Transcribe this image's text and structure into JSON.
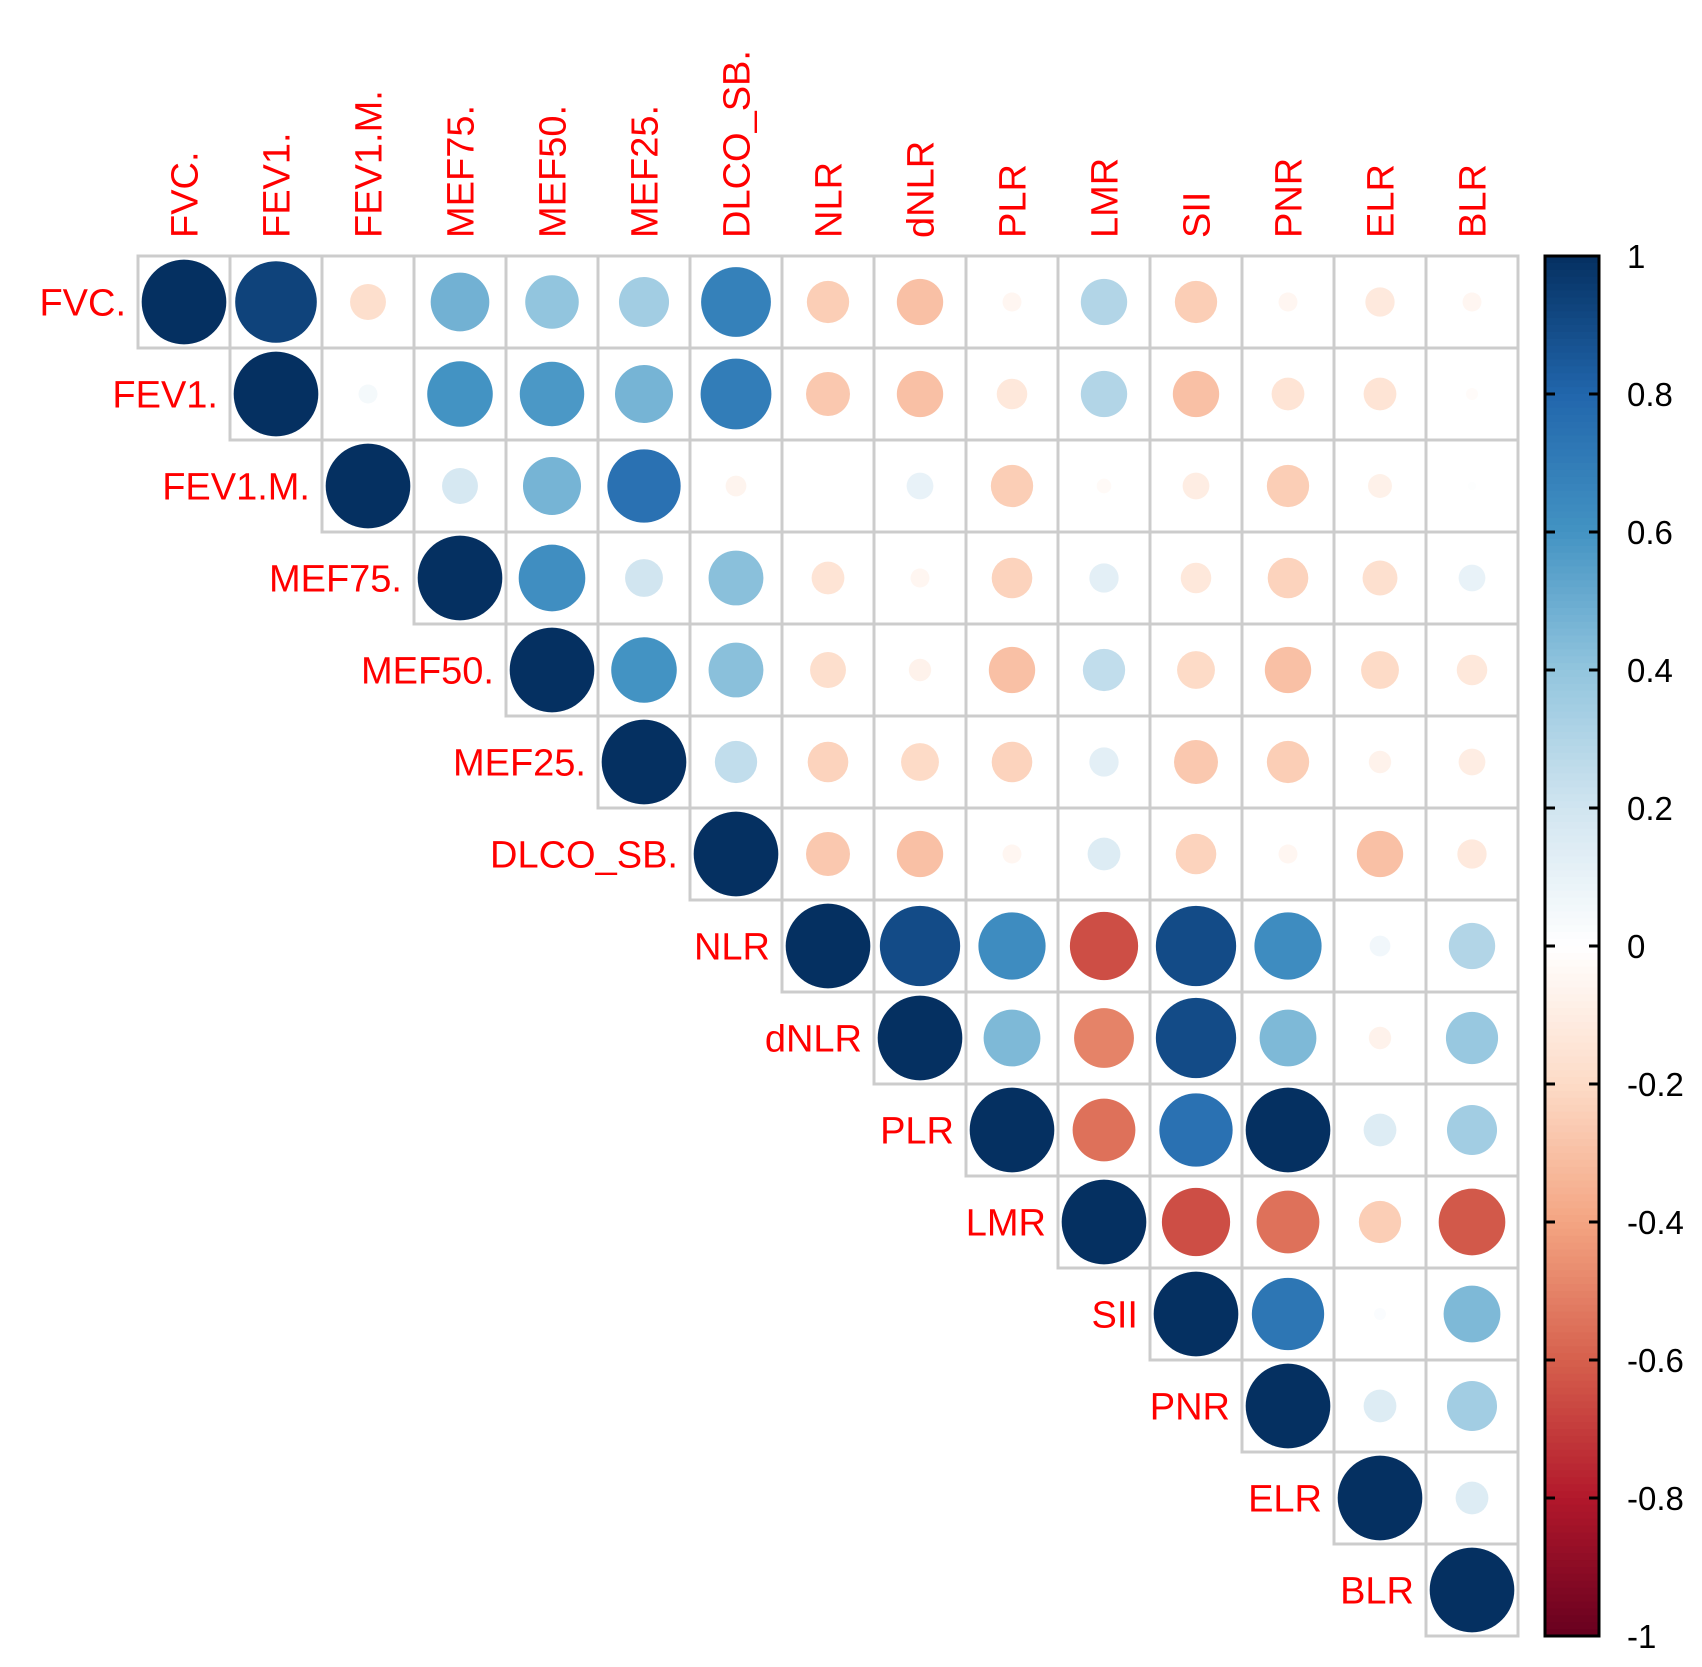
{
  "chart_data": {
    "type": "heatmap",
    "style": "corrplot-circle-upper",
    "variables": [
      "FVC.",
      "FEV1.",
      "FEV1.M.",
      "MEF75.",
      "MEF50.",
      "MEF25.",
      "DLCO_SB.",
      "NLR",
      "dNLR",
      "PLR",
      "LMR",
      "SII",
      "PNR",
      "ELR",
      "BLR"
    ],
    "matrix": [
      [
        1.0,
        0.93,
        -0.18,
        0.48,
        0.4,
        0.35,
        0.68,
        -0.25,
        -0.3,
        -0.05,
        0.3,
        -0.25,
        -0.05,
        -0.12,
        -0.05
      ],
      [
        null,
        1.0,
        0.05,
        0.6,
        0.58,
        0.47,
        0.7,
        -0.27,
        -0.3,
        -0.13,
        0.3,
        -0.3,
        -0.15,
        -0.15,
        -0.02
      ],
      [
        null,
        null,
        1.0,
        0.18,
        0.47,
        0.75,
        -0.06,
        0.0,
        0.1,
        -0.25,
        -0.03,
        -0.1,
        -0.25,
        -0.08,
        0.01
      ],
      [
        null,
        null,
        null,
        1.0,
        0.62,
        0.2,
        0.42,
        -0.15,
        -0.05,
        -0.23,
        0.12,
        -0.13,
        -0.23,
        -0.17,
        0.1
      ],
      [
        null,
        null,
        null,
        null,
        1.0,
        0.6,
        0.42,
        -0.18,
        -0.07,
        -0.3,
        0.25,
        -0.2,
        -0.3,
        -0.2,
        -0.13
      ],
      [
        null,
        null,
        null,
        null,
        null,
        1.0,
        0.25,
        -0.23,
        -0.2,
        -0.23,
        0.12,
        -0.27,
        -0.25,
        -0.07,
        -0.1
      ],
      [
        null,
        null,
        null,
        null,
        null,
        null,
        1.0,
        -0.27,
        -0.3,
        -0.05,
        0.15,
        -0.23,
        -0.05,
        -0.3,
        -0.12
      ],
      [
        null,
        null,
        null,
        null,
        null,
        null,
        null,
        1.0,
        0.9,
        0.63,
        -0.65,
        0.9,
        0.63,
        0.06,
        0.3
      ],
      [
        null,
        null,
        null,
        null,
        null,
        null,
        null,
        null,
        1.0,
        0.45,
        -0.5,
        0.9,
        0.45,
        -0.07,
        0.38
      ],
      [
        null,
        null,
        null,
        null,
        null,
        null,
        null,
        null,
        null,
        1.0,
        -0.55,
        0.75,
        1.0,
        0.15,
        0.35
      ],
      [
        null,
        null,
        null,
        null,
        null,
        null,
        null,
        null,
        null,
        null,
        1.0,
        -0.65,
        -0.55,
        -0.25,
        -0.62
      ],
      [
        null,
        null,
        null,
        null,
        null,
        null,
        null,
        null,
        null,
        null,
        null,
        1.0,
        0.73,
        0.02,
        0.45
      ],
      [
        null,
        null,
        null,
        null,
        null,
        null,
        null,
        null,
        null,
        null,
        null,
        null,
        1.0,
        0.15,
        0.35
      ],
      [
        null,
        null,
        null,
        null,
        null,
        null,
        null,
        null,
        null,
        null,
        null,
        null,
        null,
        1.0,
        0.15
      ],
      [
        null,
        null,
        null,
        null,
        null,
        null,
        null,
        null,
        null,
        null,
        null,
        null,
        null,
        null,
        1.0
      ]
    ],
    "colorbar": {
      "range": [
        -1,
        1
      ],
      "tick_labels": [
        "1",
        "0.8",
        "0.6",
        "0.4",
        "0.2",
        "0",
        "-0.2",
        "-0.4",
        "-0.6",
        "-0.8",
        "-1"
      ],
      "tick_values": [
        1,
        0.8,
        0.6,
        0.4,
        0.2,
        0,
        -0.2,
        -0.4,
        -0.6,
        -0.8,
        -1
      ]
    },
    "colors": {
      "label": "#ff0000",
      "grid": "#cccccc",
      "palette": [
        "#67001f",
        "#b2182b",
        "#d6604d",
        "#f4a582",
        "#fddbc7",
        "#ffffff",
        "#d1e5f0",
        "#92c5de",
        "#4393c3",
        "#2166ac",
        "#053061"
      ]
    }
  }
}
